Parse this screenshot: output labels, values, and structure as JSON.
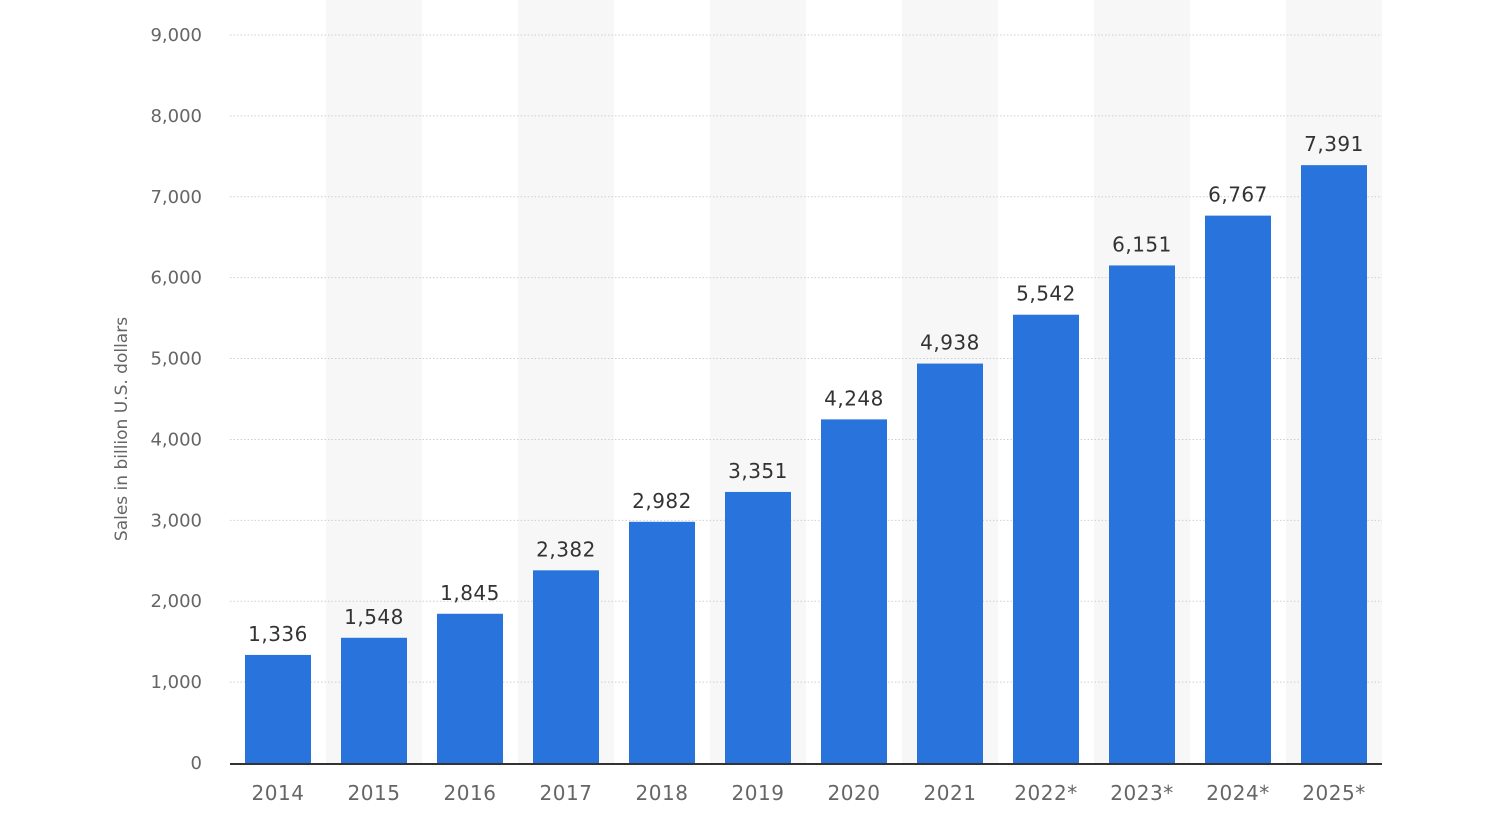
{
  "chart_data": {
    "type": "bar",
    "categories": [
      "2014",
      "2015",
      "2016",
      "2017",
      "2018",
      "2019",
      "2020",
      "2021",
      "2022*",
      "2023*",
      "2024*",
      "2025*"
    ],
    "values": [
      1336,
      1548,
      1845,
      2382,
      2982,
      3351,
      4248,
      4938,
      5542,
      6151,
      6767,
      7391
    ],
    "data_labels": [
      "1,336",
      "1,548",
      "1,845",
      "2,382",
      "2,982",
      "3,351",
      "4,248",
      "4,938",
      "5,542",
      "6,151",
      "6,767",
      "7,391"
    ],
    "title": "",
    "xlabel": "",
    "ylabel": "Sales in billion U.S. dollars",
    "ylim": [
      0,
      9000
    ],
    "yticks": [
      0,
      1000,
      2000,
      3000,
      4000,
      5000,
      6000,
      7000,
      8000,
      9000
    ],
    "ytick_labels": [
      "0",
      "1,000",
      "2,000",
      "3,000",
      "4,000",
      "5,000",
      "6,000",
      "7,000",
      "8,000",
      "9,000"
    ],
    "grid": true,
    "legend": "none",
    "colors": {
      "bar": "#2874dc",
      "alternate_band": "#f7f7f7",
      "gridline": "#cfcfcf",
      "axis": "#333333"
    }
  }
}
